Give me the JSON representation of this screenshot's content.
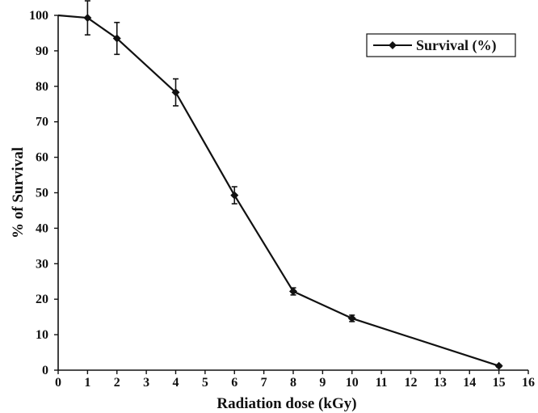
{
  "chart_data": {
    "type": "line",
    "title": "",
    "xlabel": "Radiation dose (kGy)",
    "ylabel": "% of Survival",
    "xlim": [
      0,
      16
    ],
    "ylim": [
      0,
      100
    ],
    "x_ticks": [
      "0",
      "1",
      "2",
      "3",
      "4",
      "5",
      "6",
      "7",
      "8",
      "9",
      "10",
      "11",
      "12",
      "13",
      "14",
      "15",
      "16"
    ],
    "y_ticks": [
      "0",
      "10",
      "20",
      "30",
      "40",
      "50",
      "60",
      "70",
      "80",
      "90",
      "100"
    ],
    "grid": false,
    "legend_position": "top-right",
    "series": [
      {
        "name": "Survival (%)",
        "color": "#111111",
        "marker": "diamond",
        "x": [
          0,
          1,
          2,
          4,
          6,
          8,
          10,
          15
        ],
        "values": [
          100,
          99.3,
          93.5,
          78.3,
          49.3,
          22.2,
          14.6,
          1.2
        ],
        "error": [
          0,
          4.8,
          4.5,
          3.8,
          2.4,
          1.0,
          0.9,
          0.3
        ]
      }
    ]
  }
}
